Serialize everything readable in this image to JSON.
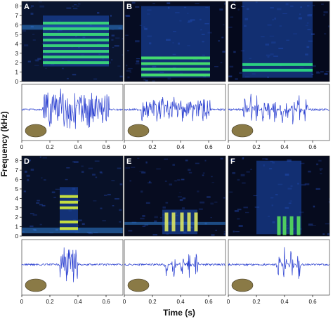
{
  "figure": {
    "ylabel": "Frequency (kHz)",
    "xlabel": "Time (s)"
  },
  "chart_data": [
    {
      "panel": "A",
      "type": "heatmap",
      "kind": "spectrogram+oscillogram",
      "x_ticks": [
        "0",
        "0.2",
        "0.4",
        "0.6"
      ],
      "y_ticks": [
        "0",
        "1",
        "2",
        "3",
        "4",
        "5",
        "6",
        "7",
        "8"
      ],
      "xlim": [
        0,
        0.72
      ],
      "ylim": [
        0,
        8.5
      ],
      "call_time": [
        0.15,
        0.62
      ],
      "call_freq": [
        1.6,
        7.0
      ],
      "bands_khz": [
        2.0,
        2.6,
        3.2,
        3.8,
        4.4,
        5.0,
        5.6,
        6.2
      ],
      "noise_band_khz": [
        5.5,
        6.0
      ],
      "wave": {
        "style": "block",
        "pulses": [
          0.15,
          0.62
        ],
        "amplitude": 0.9
      },
      "colors": {
        "bg": "#0a1530",
        "call": "#3ce07a",
        "wave": "#2a3fd0"
      }
    },
    {
      "panel": "B",
      "type": "heatmap",
      "kind": "spectrogram+oscillogram",
      "x_ticks": [
        "0",
        "0.2",
        "0.4",
        "0.6"
      ],
      "y_ticks": [],
      "xlim": [
        0,
        0.72
      ],
      "ylim": [
        0,
        8.5
      ],
      "call_time": [
        0.12,
        0.61
      ],
      "call_freq": [
        0.4,
        8.0
      ],
      "bands_khz": [
        0.7,
        1.3,
        1.9,
        2.5
      ],
      "wave": {
        "style": "block",
        "pulses": [
          0.12,
          0.61
        ],
        "amplitude": 0.55
      },
      "colors": {
        "bg": "#060c22",
        "call": "#49ec6e",
        "wave": "#2a3fd0"
      }
    },
    {
      "panel": "C",
      "type": "heatmap",
      "kind": "spectrogram+oscillogram",
      "x_ticks": [
        "0",
        "0.2",
        "0.4",
        "0.6"
      ],
      "y_ticks": [],
      "xlim": [
        0,
        0.72
      ],
      "ylim": [
        0,
        8.5
      ],
      "call_time": [
        0.1,
        0.6
      ],
      "call_freq": [
        0.4,
        8.5
      ],
      "bands_khz": [
        1.2,
        1.8
      ],
      "wave": {
        "style": "pulses",
        "pulses": [
          0.12,
          0.16,
          0.2,
          0.25,
          0.29,
          0.33,
          0.38,
          0.42,
          0.46,
          0.5,
          0.55
        ],
        "amplitude": 0.7
      },
      "colors": {
        "bg": "#05091c",
        "call": "#2fe282",
        "wave": "#2a3fd0"
      }
    },
    {
      "panel": "D",
      "type": "heatmap",
      "kind": "spectrogram+oscillogram",
      "x_ticks": [
        "0",
        "0.2",
        "0.4",
        "0.6"
      ],
      "y_ticks": [
        "0",
        "1",
        "2",
        "3",
        "4",
        "5",
        "6",
        "7",
        "8"
      ],
      "xlim": [
        0,
        0.72
      ],
      "ylim": [
        0,
        8.5
      ],
      "call_time": [
        0.27,
        0.4
      ],
      "call_freq": [
        0.4,
        5.2
      ],
      "bands_khz": [
        0.8,
        1.5,
        3.0,
        3.6,
        4.2
      ],
      "noise_band_khz": [
        0.3,
        0.9
      ],
      "wave": {
        "style": "block",
        "pulses": [
          0.27,
          0.4
        ],
        "amplitude": 0.9
      },
      "colors": {
        "bg": "#081128",
        "call": "#d8f03a",
        "wave": "#2a3fd0"
      }
    },
    {
      "panel": "E",
      "type": "heatmap",
      "kind": "spectrogram+oscillogram",
      "x_ticks": [
        "0",
        "0.2",
        "0.4",
        "0.6"
      ],
      "y_ticks": [],
      "xlim": [
        0,
        0.72
      ],
      "ylim": [
        0,
        8.5
      ],
      "call_time": [
        0.27,
        0.52
      ],
      "call_freq": [
        0.2,
        2.8
      ],
      "bands_khz": [
        1.3
      ],
      "noise_band_khz": [
        1.2,
        1.5
      ],
      "wave": {
        "style": "pulses",
        "pulses": [
          0.3,
          0.35,
          0.41,
          0.46,
          0.51
        ],
        "amplitude": 0.6
      },
      "colors": {
        "bg": "#070c20",
        "call": "#e8f060",
        "wave": "#2a3fd0"
      }
    },
    {
      "panel": "F",
      "type": "heatmap",
      "kind": "spectrogram+oscillogram",
      "x_ticks": [
        "0",
        "0.2",
        "0.4",
        "0.6"
      ],
      "y_ticks": [],
      "xlim": [
        0,
        0.72
      ],
      "ylim": [
        0,
        8.5
      ],
      "call_time": [
        0.2,
        0.52
      ],
      "call_freq": [
        0.2,
        8.0
      ],
      "bands_khz": [
        0.9
      ],
      "wave": {
        "style": "pulses",
        "pulses": [
          0.36,
          0.4,
          0.45,
          0.5
        ],
        "amplitude": 0.75
      },
      "colors": {
        "bg": "#060b1e",
        "call": "#59e85c",
        "wave": "#2a3fd0"
      }
    }
  ]
}
